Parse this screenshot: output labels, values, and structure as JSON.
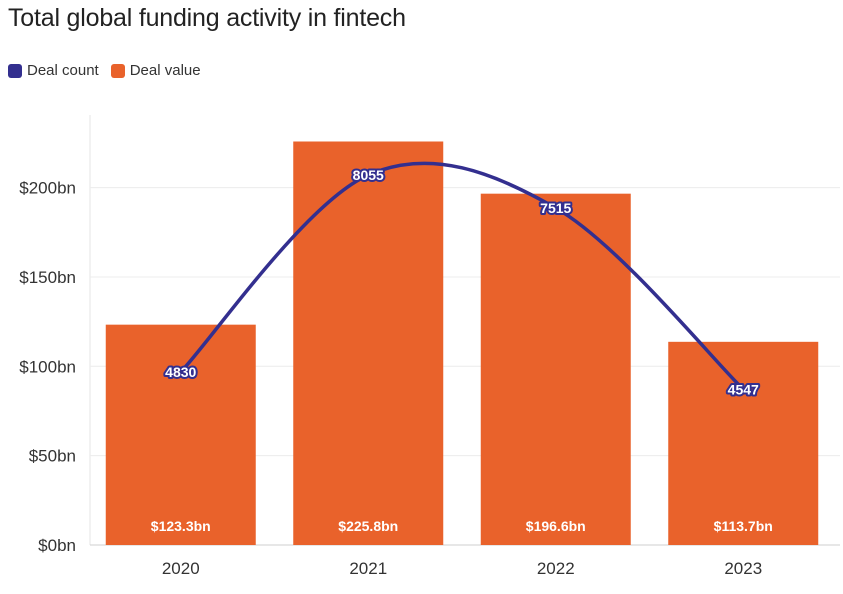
{
  "chart_data": {
    "type": "bar",
    "title": "Total global funding activity in fintech",
    "categories": [
      "2020",
      "2021",
      "2022",
      "2023"
    ],
    "series": [
      {
        "name": "Deal value",
        "type": "bar",
        "values": [
          123.3,
          225.8,
          196.6,
          113.7
        ],
        "labels": [
          "$123.3bn",
          "$225.8bn",
          "$196.6bn",
          "$113.7bn"
        ],
        "color": "#e9622b"
      },
      {
        "name": "Deal count",
        "type": "line",
        "values": [
          4830,
          8055,
          7515,
          4547
        ],
        "labels": [
          "4830",
          "8055",
          "7515",
          "4547"
        ],
        "color": "#332f8f"
      }
    ],
    "yaxis": {
      "ticks": [
        0,
        50,
        100,
        150,
        200
      ],
      "tick_labels": [
        "$0bn",
        "$50bn",
        "$100bn",
        "$150bn",
        "$200bn"
      ],
      "ylim": [
        0,
        240
      ]
    },
    "line_axis_note": "Deal count plotted on a secondary (hidden) scale",
    "legend": {
      "position": "top-left",
      "items": [
        "Deal count",
        "Deal value"
      ]
    },
    "grid": true
  }
}
